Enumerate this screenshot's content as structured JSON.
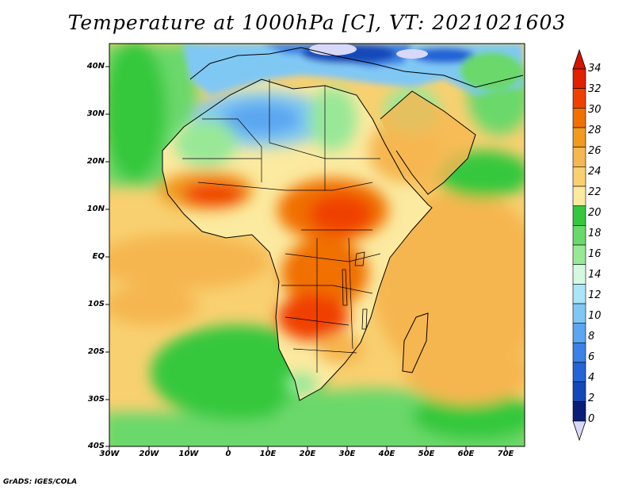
{
  "title": "Temperature at 1000hPa [C], VT: 2021021603",
  "credit": "GrADS: IGES/COLA",
  "lat_labels": [
    "40N",
    "30N",
    "20N",
    "10N",
    "EQ",
    "10S",
    "20S",
    "30S",
    "40S"
  ],
  "lon_labels": [
    "30W",
    "20W",
    "10W",
    "0",
    "10E",
    "20E",
    "30E",
    "40E",
    "50E",
    "60E",
    "70E"
  ],
  "colorbar": {
    "labels": [
      "34",
      "32",
      "30",
      "28",
      "26",
      "24",
      "22",
      "20",
      "18",
      "16",
      "14",
      "12",
      "10",
      "8",
      "6",
      "4",
      "2",
      "0"
    ],
    "colors": [
      "#e02000",
      "#f04000",
      "#f07000",
      "#f09a20",
      "#f6b650",
      "#f8d070",
      "#fbeaa0",
      "#36c83c",
      "#6ad86a",
      "#98e898",
      "#d4f8e0",
      "#ace4f8",
      "#80c8f4",
      "#5aa6f0",
      "#3c82e6",
      "#2464d6",
      "#1448b8",
      "#0a1e78"
    ],
    "top_color": "#d41400",
    "bottom_color": "#d8d8f8"
  }
}
